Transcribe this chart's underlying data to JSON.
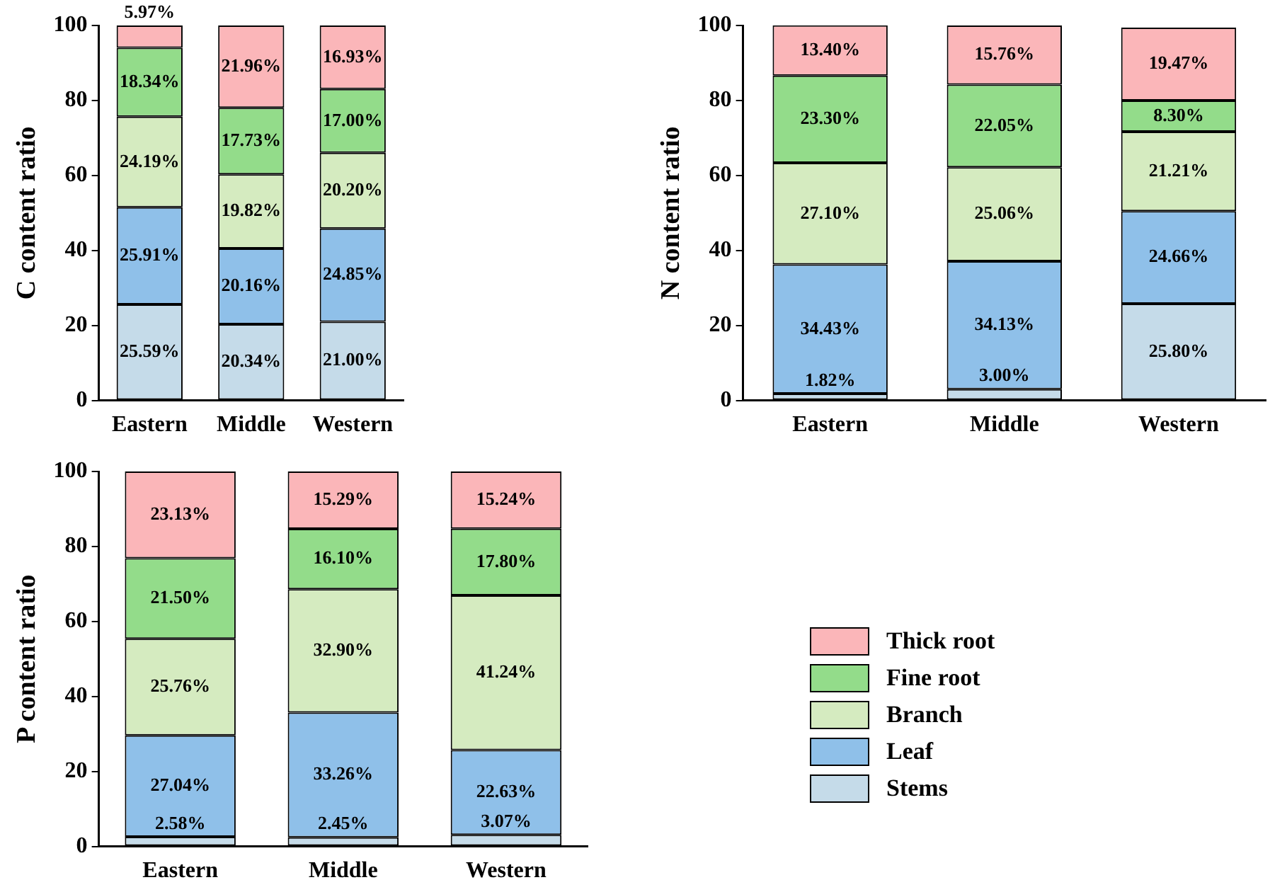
{
  "chart_data": [
    {
      "type": "bar",
      "stacked": true,
      "ylabel": "C content ratio",
      "categories": [
        "Eastern",
        "Middle",
        "Western"
      ],
      "ylim": [
        0,
        100
      ],
      "yticks": [
        0,
        20,
        40,
        60,
        80,
        100
      ],
      "legend": false,
      "series": [
        {
          "color": "#c5dbe9",
          "values": [
            25.59,
            20.34,
            21.0
          ],
          "value_labels": [
            "25.59%",
            "20.34%",
            "21.00%"
          ]
        },
        {
          "color": "#8fc0e9",
          "values": [
            25.91,
            20.16,
            24.85
          ],
          "value_labels": [
            "25.91%",
            "20.16%",
            "24.85%"
          ]
        },
        {
          "color": "#d5ebc0",
          "values": [
            24.19,
            19.82,
            20.2
          ],
          "value_labels": [
            "24.19%",
            "19.82%",
            "20.20%"
          ]
        },
        {
          "color": "#93dc8a",
          "values": [
            18.34,
            17.73,
            17.0
          ],
          "value_labels": [
            "18.34%",
            "17.73%",
            "17.00%"
          ]
        },
        {
          "color": "#fbb6b9",
          "values": [
            5.97,
            21.96,
            16.93
          ],
          "value_labels": [
            "5.97%",
            "21.96%",
            "16.93%"
          ]
        }
      ]
    },
    {
      "type": "bar",
      "stacked": true,
      "ylabel": "N content ratio",
      "categories": [
        "Eastern",
        "Middle",
        "Western"
      ],
      "ylim": [
        0,
        100
      ],
      "yticks": [
        0,
        20,
        40,
        60,
        80,
        100
      ],
      "legend": false,
      "series": [
        {
          "color": "#c5dbe9",
          "values": [
            1.82,
            3.0,
            25.8
          ],
          "value_labels": [
            "1.82%",
            "3.00%",
            "25.80%"
          ]
        },
        {
          "color": "#8fc0e9",
          "values": [
            34.43,
            34.13,
            24.66
          ],
          "value_labels": [
            "34.43%",
            "34.13%",
            "24.66%"
          ]
        },
        {
          "color": "#d5ebc0",
          "values": [
            27.1,
            25.06,
            21.21
          ],
          "value_labels": [
            "27.10%",
            "25.06%",
            "21.21%"
          ]
        },
        {
          "color": "#93dc8a",
          "values": [
            23.3,
            22.05,
            8.3
          ],
          "value_labels": [
            "23.30%",
            "22.05%",
            "8.30%"
          ]
        },
        {
          "color": "#fbb6b9",
          "values": [
            13.4,
            15.76,
            19.47
          ],
          "value_labels": [
            "13.40%",
            "15.76%",
            "19.47%"
          ]
        }
      ]
    },
    {
      "type": "bar",
      "stacked": true,
      "ylabel": "P content ratio",
      "categories": [
        "Eastern",
        "Middle",
        "Western"
      ],
      "ylim": [
        0,
        100
      ],
      "yticks": [
        0,
        20,
        40,
        60,
        80,
        100
      ],
      "legend": "right",
      "series": [
        {
          "name": "Stems",
          "color": "#c5dbe9",
          "values": [
            2.58,
            2.45,
            3.07
          ],
          "value_labels": [
            "2.58%",
            "2.45%",
            "3.07%"
          ]
        },
        {
          "name": "Leaf",
          "color": "#8fc0e9",
          "values": [
            27.04,
            33.26,
            22.63
          ],
          "value_labels": [
            "27.04%",
            "33.26%",
            "22.63%"
          ]
        },
        {
          "name": "Branch",
          "color": "#d5ebc0",
          "values": [
            25.76,
            32.9,
            41.24
          ],
          "value_labels": [
            "25.76%",
            "32.90%",
            "41.24%"
          ]
        },
        {
          "name": "Fine root",
          "color": "#93dc8a",
          "values": [
            21.5,
            16.1,
            17.8
          ],
          "value_labels": [
            "21.50%",
            "16.10%",
            "17.80%"
          ]
        },
        {
          "name": "Thick root",
          "color": "#fbb6b9",
          "values": [
            23.13,
            15.29,
            15.24
          ],
          "value_labels": [
            "23.13%",
            "15.29%",
            "15.24%"
          ]
        }
      ]
    }
  ]
}
